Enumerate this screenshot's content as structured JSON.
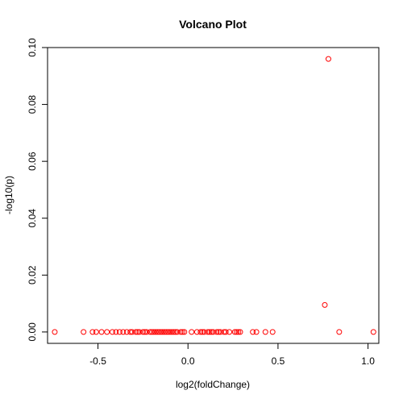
{
  "chart_data": {
    "type": "scatter",
    "title": "Volcano Plot",
    "xlabel": "log2(foldChange)",
    "ylabel": "-log10(p)",
    "xlim": [
      -0.78,
      1.06
    ],
    "ylim": [
      -0.004,
      0.1
    ],
    "xticks": [
      -0.5,
      0.0,
      0.5,
      1.0
    ],
    "xtick_labels": [
      "-0.5",
      "0.0",
      "0.5",
      "1.0"
    ],
    "yticks": [
      0.0,
      0.02,
      0.04,
      0.06,
      0.08,
      0.1
    ],
    "ytick_labels": [
      "0.00",
      "0.02",
      "0.04",
      "0.06",
      "0.08",
      "0.10"
    ],
    "marker_color": "#ff0000",
    "grid": false,
    "points": [
      {
        "x": 0.78,
        "y": 0.096
      },
      {
        "x": 0.76,
        "y": 0.0095
      },
      {
        "x": 0.84,
        "y": 0.0
      },
      {
        "x": 1.03,
        "y": 0.0
      },
      {
        "x": -0.74,
        "y": 0.0
      },
      {
        "x": -0.58,
        "y": 0.0
      },
      {
        "x": -0.53,
        "y": 0.0
      },
      {
        "x": -0.51,
        "y": 0.0
      },
      {
        "x": -0.48,
        "y": 0.0
      },
      {
        "x": -0.45,
        "y": 0.0
      },
      {
        "x": -0.42,
        "y": 0.0
      },
      {
        "x": -0.4,
        "y": 0.0
      },
      {
        "x": -0.38,
        "y": 0.0
      },
      {
        "x": -0.36,
        "y": 0.0
      },
      {
        "x": -0.34,
        "y": 0.0
      },
      {
        "x": -0.32,
        "y": 0.0
      },
      {
        "x": -0.31,
        "y": 0.0
      },
      {
        "x": -0.29,
        "y": 0.0
      },
      {
        "x": -0.28,
        "y": 0.0
      },
      {
        "x": -0.27,
        "y": 0.0
      },
      {
        "x": -0.25,
        "y": 0.0
      },
      {
        "x": -0.24,
        "y": 0.0
      },
      {
        "x": -0.23,
        "y": 0.0
      },
      {
        "x": -0.21,
        "y": 0.0
      },
      {
        "x": -0.2,
        "y": 0.0
      },
      {
        "x": -0.19,
        "y": 0.0
      },
      {
        "x": -0.18,
        "y": 0.0
      },
      {
        "x": -0.17,
        "y": 0.0
      },
      {
        "x": -0.16,
        "y": 0.0
      },
      {
        "x": -0.15,
        "y": 0.0
      },
      {
        "x": -0.14,
        "y": 0.0
      },
      {
        "x": -0.13,
        "y": 0.0
      },
      {
        "x": -0.12,
        "y": 0.0
      },
      {
        "x": -0.11,
        "y": 0.0
      },
      {
        "x": -0.1,
        "y": 0.0
      },
      {
        "x": -0.09,
        "y": 0.0
      },
      {
        "x": -0.08,
        "y": 0.0
      },
      {
        "x": -0.07,
        "y": 0.0
      },
      {
        "x": -0.06,
        "y": 0.0
      },
      {
        "x": -0.04,
        "y": 0.0
      },
      {
        "x": -0.03,
        "y": 0.0
      },
      {
        "x": -0.02,
        "y": 0.0
      },
      {
        "x": 0.02,
        "y": 0.0
      },
      {
        "x": 0.05,
        "y": 0.0
      },
      {
        "x": 0.07,
        "y": 0.0
      },
      {
        "x": 0.08,
        "y": 0.0
      },
      {
        "x": 0.09,
        "y": 0.0
      },
      {
        "x": 0.11,
        "y": 0.0
      },
      {
        "x": 0.12,
        "y": 0.0
      },
      {
        "x": 0.13,
        "y": 0.0
      },
      {
        "x": 0.14,
        "y": 0.0
      },
      {
        "x": 0.16,
        "y": 0.0
      },
      {
        "x": 0.17,
        "y": 0.0
      },
      {
        "x": 0.18,
        "y": 0.0
      },
      {
        "x": 0.2,
        "y": 0.0
      },
      {
        "x": 0.21,
        "y": 0.0
      },
      {
        "x": 0.23,
        "y": 0.0
      },
      {
        "x": 0.26,
        "y": 0.0
      },
      {
        "x": 0.27,
        "y": 0.0
      },
      {
        "x": 0.28,
        "y": 0.0
      },
      {
        "x": 0.29,
        "y": 0.0
      },
      {
        "x": 0.36,
        "y": 0.0
      },
      {
        "x": 0.38,
        "y": 0.0
      },
      {
        "x": 0.43,
        "y": 0.0
      },
      {
        "x": 0.47,
        "y": 0.0
      }
    ]
  }
}
